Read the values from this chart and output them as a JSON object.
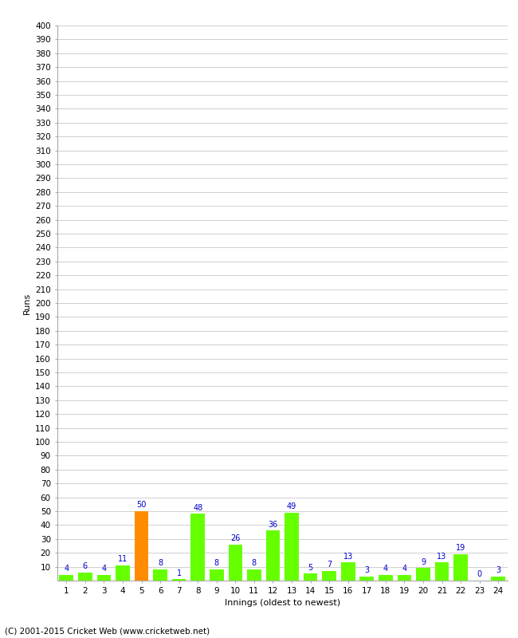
{
  "xlabel": "Innings (oldest to newest)",
  "ylabel": "Runs",
  "categories": [
    1,
    2,
    3,
    4,
    5,
    6,
    7,
    8,
    9,
    10,
    11,
    12,
    13,
    14,
    15,
    16,
    17,
    18,
    19,
    20,
    21,
    22,
    23,
    24
  ],
  "values": [
    4,
    6,
    4,
    11,
    50,
    8,
    1,
    48,
    8,
    26,
    8,
    36,
    49,
    5,
    7,
    13,
    3,
    4,
    4,
    9,
    13,
    19,
    0,
    3
  ],
  "bar_colors": [
    "#66ff00",
    "#66ff00",
    "#66ff00",
    "#66ff00",
    "#ff8c00",
    "#66ff00",
    "#66ff00",
    "#66ff00",
    "#66ff00",
    "#66ff00",
    "#66ff00",
    "#66ff00",
    "#66ff00",
    "#66ff00",
    "#66ff00",
    "#66ff00",
    "#66ff00",
    "#66ff00",
    "#66ff00",
    "#66ff00",
    "#66ff00",
    "#66ff00",
    "#66ff00",
    "#66ff00"
  ],
  "ylim": [
    0,
    400
  ],
  "yticks": [
    10,
    20,
    30,
    40,
    50,
    60,
    70,
    80,
    90,
    100,
    110,
    120,
    130,
    140,
    150,
    160,
    170,
    180,
    190,
    200,
    210,
    220,
    230,
    240,
    250,
    260,
    270,
    280,
    290,
    300,
    310,
    320,
    330,
    340,
    350,
    360,
    370,
    380,
    390,
    400
  ],
  "label_color": "#0000cc",
  "grid_color": "#c8c8c8",
  "background_color": "#ffffff",
  "axis_label_fontsize": 8,
  "tick_fontsize": 7.5,
  "value_label_fontsize": 7,
  "footer": "(C) 2001-2015 Cricket Web (www.cricketweb.net)"
}
